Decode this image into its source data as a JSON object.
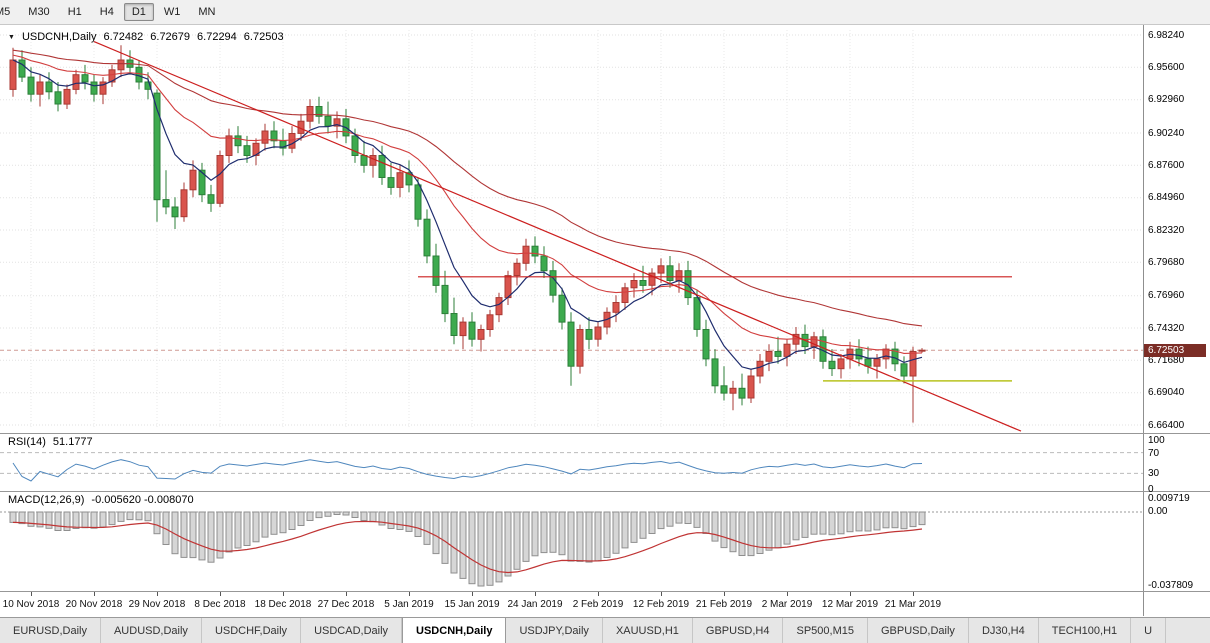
{
  "toolbar": {
    "timeframes": [
      "M5",
      "M30",
      "H1",
      "H4",
      "D1",
      "W1",
      "MN"
    ],
    "active": "D1"
  },
  "header": {
    "symbol": "USDCNH,Daily",
    "open": "6.72482",
    "high": "6.72679",
    "low": "6.72294",
    "close": "6.72503"
  },
  "price_axis": {
    "labels": [
      "6.98240",
      "6.95600",
      "6.92960",
      "6.90240",
      "6.87600",
      "6.84960",
      "6.82320",
      "6.79680",
      "6.76960",
      "6.74320",
      "6.71680",
      "6.69040",
      "6.66400"
    ],
    "bid_label": "6.72503"
  },
  "date_axis": {
    "labels": [
      "10 Nov 2018",
      "20 Nov 2018",
      "29 Nov 2018",
      "8 Dec 2018",
      "18 Dec 2018",
      "27 Dec 2018",
      "5 Jan 2019",
      "15 Jan 2019",
      "24 Jan 2019",
      "2 Feb 2019",
      "12 Feb 2019",
      "21 Feb 2019",
      "2 Mar 2019",
      "12 Mar 2019",
      "21 Mar 2019"
    ],
    "tick_indices": [
      2,
      9,
      16,
      23,
      30,
      37,
      44,
      51,
      58,
      65,
      72,
      79,
      86,
      93,
      100
    ]
  },
  "rsi_panel": {
    "name_label": "RSI(14)",
    "value_label": "51.1777",
    "axis_labels": [
      "100",
      "70",
      "30",
      "0"
    ],
    "levels": [
      70,
      30
    ]
  },
  "macd_panel": {
    "name_label": "MACD(12,26,9)",
    "values_label": "-0.005620 -0.008070",
    "axis_top_label": "0.009719",
    "axis_zero_label": "0.00",
    "axis_bottom_label": "-0.037809"
  },
  "symbol_tabs": {
    "items": [
      "EURUSD,Daily",
      "AUDUSD,Daily",
      "USDCHF,Daily",
      "USDCAD,Daily",
      "USDCNH,Daily",
      "USDJPY,Daily",
      "XAUUSD,H1",
      "GBPUSD,H4",
      "SP500,M15",
      "GBPUSD,Daily",
      "DJ30,H4",
      "TECH100,H1",
      "U"
    ],
    "active": "USDCNH,Daily"
  },
  "colors": {
    "up": "#d9544d",
    "up_border": "#a93a34",
    "down": "#3daa4e",
    "down_border": "#2c7f39",
    "ma_fast": "#1f2d6e",
    "ma_mid": "#d23f3f",
    "ma_slow": "#b03636",
    "trend": "#cc1f1f",
    "support": "#b8c21f",
    "rsi": "#4f87bd",
    "macd_bar_fill": "#d6d6d6",
    "macd_bar_stroke": "#8f8f8f",
    "macd_signal": "#c03434",
    "bid_tag_bg": "#7b2d26"
  },
  "chart_data": {
    "type": "candlestick",
    "symbol": "USDCNH",
    "timeframe": "Daily",
    "price_range": {
      "top": 6.9824,
      "bottom": 6.664
    },
    "bid": 6.72503,
    "indicators": {
      "ma_fast_period": 7,
      "ma_mid_period": 20,
      "ma_slow_period": 45,
      "rsi_period": 14,
      "macd_params": [
        12,
        26,
        9
      ]
    },
    "overlays": {
      "trendline": {
        "x1_index": 9,
        "price1": 6.977,
        "x2_index": 112,
        "price2": 6.659
      },
      "resistance_line": {
        "price": 6.785,
        "from_index": 45,
        "to_index": 111
      },
      "support_line": {
        "price": 6.7,
        "from_index": 90,
        "to_index": 111
      }
    },
    "ohlc": [
      [
        6.938,
        6.972,
        6.932,
        6.962
      ],
      [
        6.962,
        6.97,
        6.944,
        6.948
      ],
      [
        6.948,
        6.956,
        6.928,
        6.934
      ],
      [
        6.934,
        6.95,
        6.924,
        6.944
      ],
      [
        6.944,
        6.952,
        6.93,
        6.936
      ],
      [
        6.936,
        6.944,
        6.92,
        6.926
      ],
      [
        6.926,
        6.942,
        6.922,
        6.938
      ],
      [
        6.938,
        6.954,
        6.934,
        6.95
      ],
      [
        6.95,
        6.958,
        6.938,
        6.944
      ],
      [
        6.944,
        6.95,
        6.928,
        6.934
      ],
      [
        6.934,
        6.948,
        6.926,
        6.944
      ],
      [
        6.944,
        6.958,
        6.94,
        6.954
      ],
      [
        6.954,
        6.974,
        6.948,
        6.962
      ],
      [
        6.962,
        6.97,
        6.95,
        6.956
      ],
      [
        6.956,
        6.962,
        6.938,
        6.944
      ],
      [
        6.944,
        6.952,
        6.93,
        6.938
      ],
      [
        6.935,
        6.938,
        6.83,
        6.848
      ],
      [
        6.848,
        6.872,
        6.836,
        6.842
      ],
      [
        6.842,
        6.85,
        6.824,
        6.834
      ],
      [
        6.834,
        6.862,
        6.83,
        6.856
      ],
      [
        6.856,
        6.88,
        6.85,
        6.872
      ],
      [
        6.872,
        6.878,
        6.846,
        6.852
      ],
      [
        6.852,
        6.86,
        6.838,
        6.845
      ],
      [
        6.845,
        6.888,
        6.842,
        6.884
      ],
      [
        6.884,
        6.906,
        6.878,
        6.9
      ],
      [
        6.9,
        6.908,
        6.886,
        6.892
      ],
      [
        6.892,
        6.9,
        6.878,
        6.884
      ],
      [
        6.884,
        6.898,
        6.876,
        6.894
      ],
      [
        6.894,
        6.91,
        6.888,
        6.904
      ],
      [
        6.904,
        6.912,
        6.89,
        6.896
      ],
      [
        6.896,
        6.906,
        6.884,
        6.89
      ],
      [
        6.89,
        6.908,
        6.886,
        6.902
      ],
      [
        6.902,
        6.918,
        6.896,
        6.912
      ],
      [
        6.912,
        6.93,
        6.906,
        6.924
      ],
      [
        6.924,
        6.932,
        6.91,
        6.916
      ],
      [
        6.916,
        6.928,
        6.902,
        6.908
      ],
      [
        6.908,
        6.92,
        6.898,
        6.914
      ],
      [
        6.914,
        6.922,
        6.894,
        6.9
      ],
      [
        6.9,
        6.906,
        6.878,
        6.884
      ],
      [
        6.884,
        6.896,
        6.87,
        6.876
      ],
      [
        6.876,
        6.89,
        6.866,
        6.884
      ],
      [
        6.884,
        6.892,
        6.86,
        6.866
      ],
      [
        6.866,
        6.878,
        6.852,
        6.858
      ],
      [
        6.858,
        6.876,
        6.85,
        6.87
      ],
      [
        6.87,
        6.88,
        6.854,
        6.86
      ],
      [
        6.86,
        6.866,
        6.826,
        6.832
      ],
      [
        6.832,
        6.84,
        6.796,
        6.802
      ],
      [
        6.802,
        6.812,
        6.772,
        6.778
      ],
      [
        6.778,
        6.79,
        6.748,
        6.755
      ],
      [
        6.755,
        6.768,
        6.73,
        6.737
      ],
      [
        6.737,
        6.752,
        6.726,
        6.748
      ],
      [
        6.748,
        6.756,
        6.728,
        6.734
      ],
      [
        6.734,
        6.746,
        6.724,
        6.742
      ],
      [
        6.742,
        6.758,
        6.736,
        6.754
      ],
      [
        6.754,
        6.772,
        6.748,
        6.768
      ],
      [
        6.768,
        6.79,
        6.762,
        6.786
      ],
      [
        6.786,
        6.8,
        6.778,
        6.796
      ],
      [
        6.796,
        6.816,
        6.79,
        6.81
      ],
      [
        6.81,
        6.818,
        6.796,
        6.802
      ],
      [
        6.802,
        6.81,
        6.784,
        6.79
      ],
      [
        6.79,
        6.798,
        6.764,
        6.77
      ],
      [
        6.77,
        6.776,
        6.742,
        6.748
      ],
      [
        6.748,
        6.756,
        6.696,
        6.712
      ],
      [
        6.712,
        6.746,
        6.706,
        6.742
      ],
      [
        6.742,
        6.752,
        6.726,
        6.734
      ],
      [
        6.734,
        6.748,
        6.728,
        6.744
      ],
      [
        6.744,
        6.76,
        6.738,
        6.756
      ],
      [
        6.756,
        6.77,
        6.748,
        6.764
      ],
      [
        6.764,
        6.78,
        6.758,
        6.776
      ],
      [
        6.776,
        6.788,
        6.768,
        6.782
      ],
      [
        6.782,
        6.794,
        6.772,
        6.778
      ],
      [
        6.778,
        6.792,
        6.77,
        6.788
      ],
      [
        6.788,
        6.8,
        6.78,
        6.794
      ],
      [
        6.794,
        6.802,
        6.776,
        6.782
      ],
      [
        6.782,
        6.796,
        6.772,
        6.79
      ],
      [
        6.79,
        6.798,
        6.762,
        6.768
      ],
      [
        6.768,
        6.774,
        6.736,
        6.742
      ],
      [
        6.742,
        6.75,
        6.712,
        6.718
      ],
      [
        6.718,
        6.726,
        6.69,
        6.696
      ],
      [
        6.696,
        6.712,
        6.684,
        6.69
      ],
      [
        6.69,
        6.7,
        6.676,
        6.694
      ],
      [
        6.694,
        6.706,
        6.68,
        6.686
      ],
      [
        6.686,
        6.71,
        6.682,
        6.704
      ],
      [
        6.704,
        6.722,
        6.698,
        6.716
      ],
      [
        6.716,
        6.73,
        6.708,
        6.724
      ],
      [
        6.724,
        6.736,
        6.714,
        6.72
      ],
      [
        6.72,
        6.734,
        6.712,
        6.73
      ],
      [
        6.73,
        6.744,
        6.722,
        6.738
      ],
      [
        6.738,
        6.746,
        6.722,
        6.728
      ],
      [
        6.728,
        6.74,
        6.718,
        6.736
      ],
      [
        6.736,
        6.742,
        6.71,
        6.716
      ],
      [
        6.716,
        6.726,
        6.704,
        6.71
      ],
      [
        6.71,
        6.722,
        6.702,
        6.718
      ],
      [
        6.718,
        6.732,
        6.71,
        6.726
      ],
      [
        6.726,
        6.734,
        6.712,
        6.718
      ],
      [
        6.718,
        6.728,
        6.706,
        6.712
      ],
      [
        6.712,
        6.722,
        6.702,
        6.718
      ],
      [
        6.718,
        6.73,
        6.71,
        6.726
      ],
      [
        6.726,
        6.732,
        6.708,
        6.714
      ],
      [
        6.714,
        6.72,
        6.698,
        6.704
      ],
      [
        6.704,
        6.728,
        6.666,
        6.724
      ],
      [
        6.72482,
        6.72679,
        6.72294,
        6.72503
      ]
    ]
  }
}
